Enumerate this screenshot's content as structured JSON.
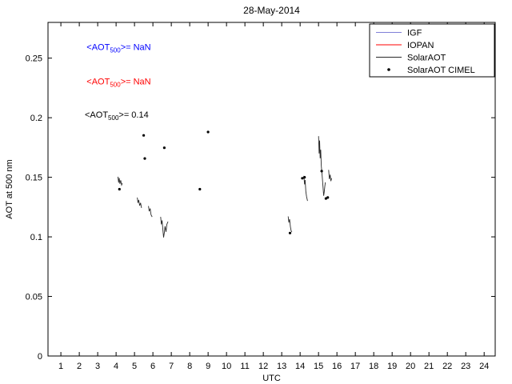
{
  "figure": {
    "background": "#ffffff"
  },
  "chart_data": {
    "type": "scatter",
    "title": "28-May-2014",
    "xlabel": "UTC",
    "ylabel": "AOT at 500 nm",
    "xlim": [
      0.3,
      24.6
    ],
    "ylim": [
      0,
      0.28
    ],
    "grid": false,
    "xticks": [
      1,
      2,
      3,
      4,
      5,
      6,
      7,
      8,
      9,
      10,
      11,
      12,
      13,
      14,
      15,
      16,
      17,
      18,
      19,
      20,
      21,
      22,
      23,
      24
    ],
    "xtick_labels": [
      "1",
      "2",
      "3",
      "4",
      "5",
      "6",
      "7",
      "8",
      "9",
      "10",
      "11",
      "12",
      "13",
      "14",
      "15",
      "16",
      "17",
      "18",
      "19",
      "20",
      "21",
      "22",
      "23",
      "24"
    ],
    "yticks": [
      0,
      0.05,
      0.1,
      0.15,
      0.2,
      0.25
    ],
    "ytick_labels": [
      "0",
      "0.05",
      "0.1",
      "0.15",
      "0.2",
      "0.25"
    ],
    "style": {
      "axis_color": "#000000",
      "font_size": 11,
      "title_font_size": 12,
      "solaraot_line_color": "#2a2a2a",
      "cimel_dot_color": "#000000"
    },
    "legend": {
      "position": "top-right",
      "entries": [
        {
          "id": "igf",
          "label": "IGF",
          "color": "#8080d8",
          "marker": "line"
        },
        {
          "id": "iopan",
          "label": "IOPAN",
          "color": "#ff0000",
          "marker": "line"
        },
        {
          "id": "solaraot",
          "label": "SolarAOT",
          "color": "#2a2a2a",
          "marker": "line"
        },
        {
          "id": "solaraot-cimel",
          "label": "SolarAOT CIMEL",
          "color": "#000000",
          "marker": "dot"
        }
      ]
    },
    "annotations": [
      {
        "id": "igf-mean",
        "prefix": "<AOT",
        "sub": "500",
        "suffix": ">=  NaN",
        "color": "#0000ff",
        "x": 2.4,
        "y": 0.257
      },
      {
        "id": "iopan-mean",
        "prefix": "<AOT",
        "sub": "500",
        "suffix": ">=  NaN",
        "color": "#ff0000",
        "x": 2.4,
        "y": 0.228
      },
      {
        "id": "solaraot-mean",
        "prefix": "<AOT",
        "sub": "500",
        "suffix": ">= 0.14",
        "color": "#000000",
        "x": 2.3,
        "y": 0.2
      }
    ],
    "series": [
      {
        "name": "SolarAOT",
        "type": "line",
        "color": "#2a2a2a",
        "segments": [
          [
            [
              4.1,
              0.1505
            ],
            [
              4.14,
              0.1455
            ],
            [
              4.17,
              0.1495
            ],
            [
              4.21,
              0.1445
            ],
            [
              4.25,
              0.1475
            ],
            [
              4.3,
              0.1435
            ],
            [
              4.34,
              0.145
            ]
          ],
          [
            [
              5.15,
              0.133
            ],
            [
              5.19,
              0.1285
            ],
            [
              5.23,
              0.131
            ],
            [
              5.28,
              0.1262
            ],
            [
              5.33,
              0.1285
            ],
            [
              5.38,
              0.1243
            ]
          ],
          [
            [
              5.76,
              0.1258
            ],
            [
              5.8,
              0.1215
            ],
            [
              5.85,
              0.1238
            ],
            [
              5.9,
              0.1185
            ],
            [
              5.96,
              0.1168
            ]
          ],
          [
            [
              6.42,
              0.1168
            ],
            [
              6.46,
              0.1105
            ],
            [
              6.5,
              0.1138
            ],
            [
              6.55,
              0.1045
            ],
            [
              6.58,
              0.0995
            ],
            [
              6.62,
              0.1035
            ],
            [
              6.66,
              0.109
            ],
            [
              6.71,
              0.1042
            ],
            [
              6.76,
              0.1105
            ],
            [
              6.82,
              0.1128
            ]
          ],
          [
            [
              13.35,
              0.1172
            ],
            [
              13.39,
              0.112
            ],
            [
              13.43,
              0.1148
            ],
            [
              13.47,
              0.1085
            ],
            [
              13.51,
              0.1052
            ],
            [
              13.55,
              0.104
            ]
          ],
          [
            [
              14.2,
              0.1512
            ],
            [
              14.24,
              0.144
            ],
            [
              14.27,
              0.1478
            ],
            [
              14.31,
              0.138
            ],
            [
              14.35,
              0.1338
            ],
            [
              14.4,
              0.1302
            ]
          ],
          [
            [
              15.0,
              0.1845
            ],
            [
              15.03,
              0.17
            ],
            [
              15.06,
              0.1808
            ],
            [
              15.09,
              0.166
            ],
            [
              15.12,
              0.1732
            ],
            [
              15.15,
              0.1598
            ],
            [
              15.18,
              0.1545
            ],
            [
              15.21,
              0.1488
            ],
            [
              15.24,
              0.1425
            ],
            [
              15.28,
              0.1345
            ],
            [
              15.31,
              0.1378
            ],
            [
              15.34,
              0.1422
            ],
            [
              15.37,
              0.1458
            ]
          ],
          [
            [
              15.55,
              0.1562
            ],
            [
              15.59,
              0.1485
            ],
            [
              15.63,
              0.1522
            ],
            [
              15.67,
              0.1468
            ],
            [
              15.71,
              0.1492
            ]
          ]
        ]
      },
      {
        "name": "SolarAOT CIMEL",
        "type": "scatter",
        "color": "#000000",
        "points": [
          [
            4.18,
            0.14
          ],
          [
            5.5,
            0.1852
          ],
          [
            5.56,
            0.1658
          ],
          [
            6.62,
            0.1748
          ],
          [
            8.55,
            0.14
          ],
          [
            9.0,
            0.188
          ],
          [
            13.45,
            0.1032
          ],
          [
            14.12,
            0.1492
          ],
          [
            14.24,
            0.15
          ],
          [
            15.17,
            0.1552
          ],
          [
            15.4,
            0.1322
          ],
          [
            15.5,
            0.133
          ]
        ]
      }
    ]
  }
}
